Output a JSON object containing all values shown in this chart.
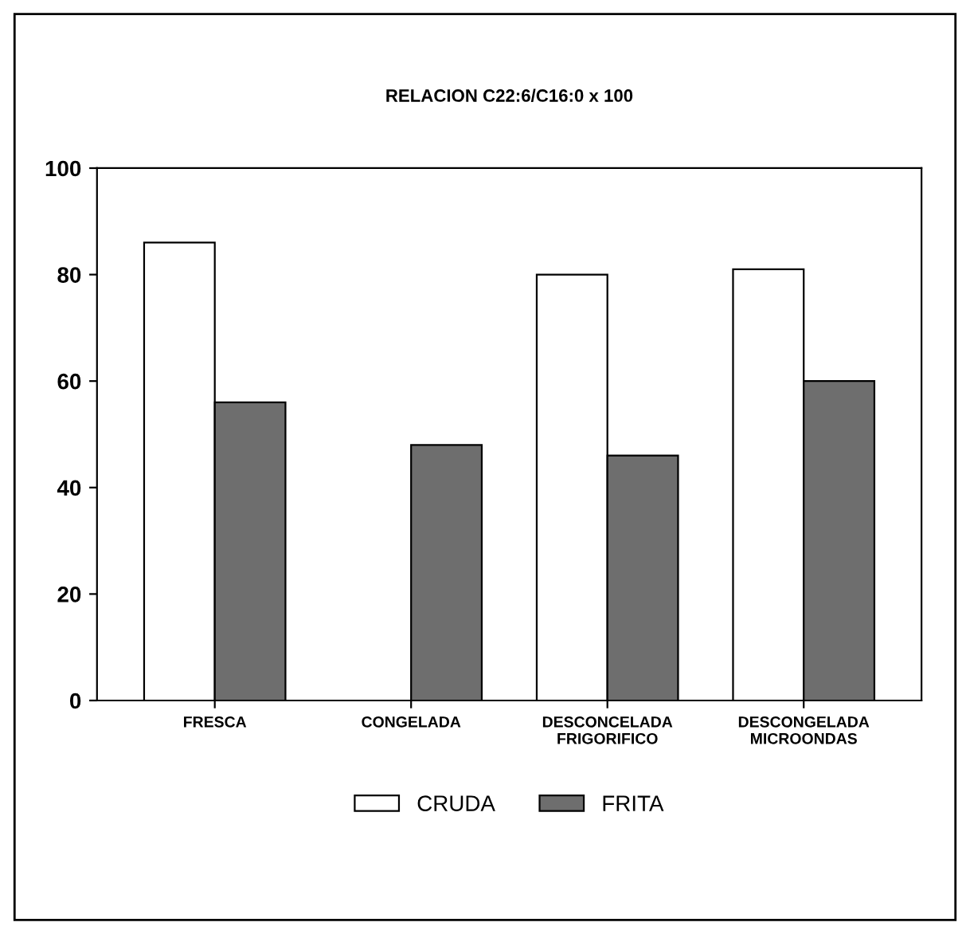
{
  "chart_data": {
    "type": "bar",
    "title": "RELACION C22:6/C16:0 x 100",
    "categories": [
      "FRESCA",
      "CONGELADA",
      "DESCONCELADA\nFRIGORIFICO",
      "DESCONGELADA\nMICROONDAS"
    ],
    "series": [
      {
        "name": "CRUDA",
        "color": "#ffffff",
        "values": [
          86,
          null,
          80,
          81
        ]
      },
      {
        "name": "FRITA",
        "color": "#6e6e6e",
        "values": [
          56,
          48,
          46,
          60
        ]
      }
    ],
    "ylim": [
      0,
      100
    ],
    "yticks": [
      0,
      20,
      40,
      60,
      80,
      100
    ],
    "grid": false,
    "legend": "bottom"
  }
}
